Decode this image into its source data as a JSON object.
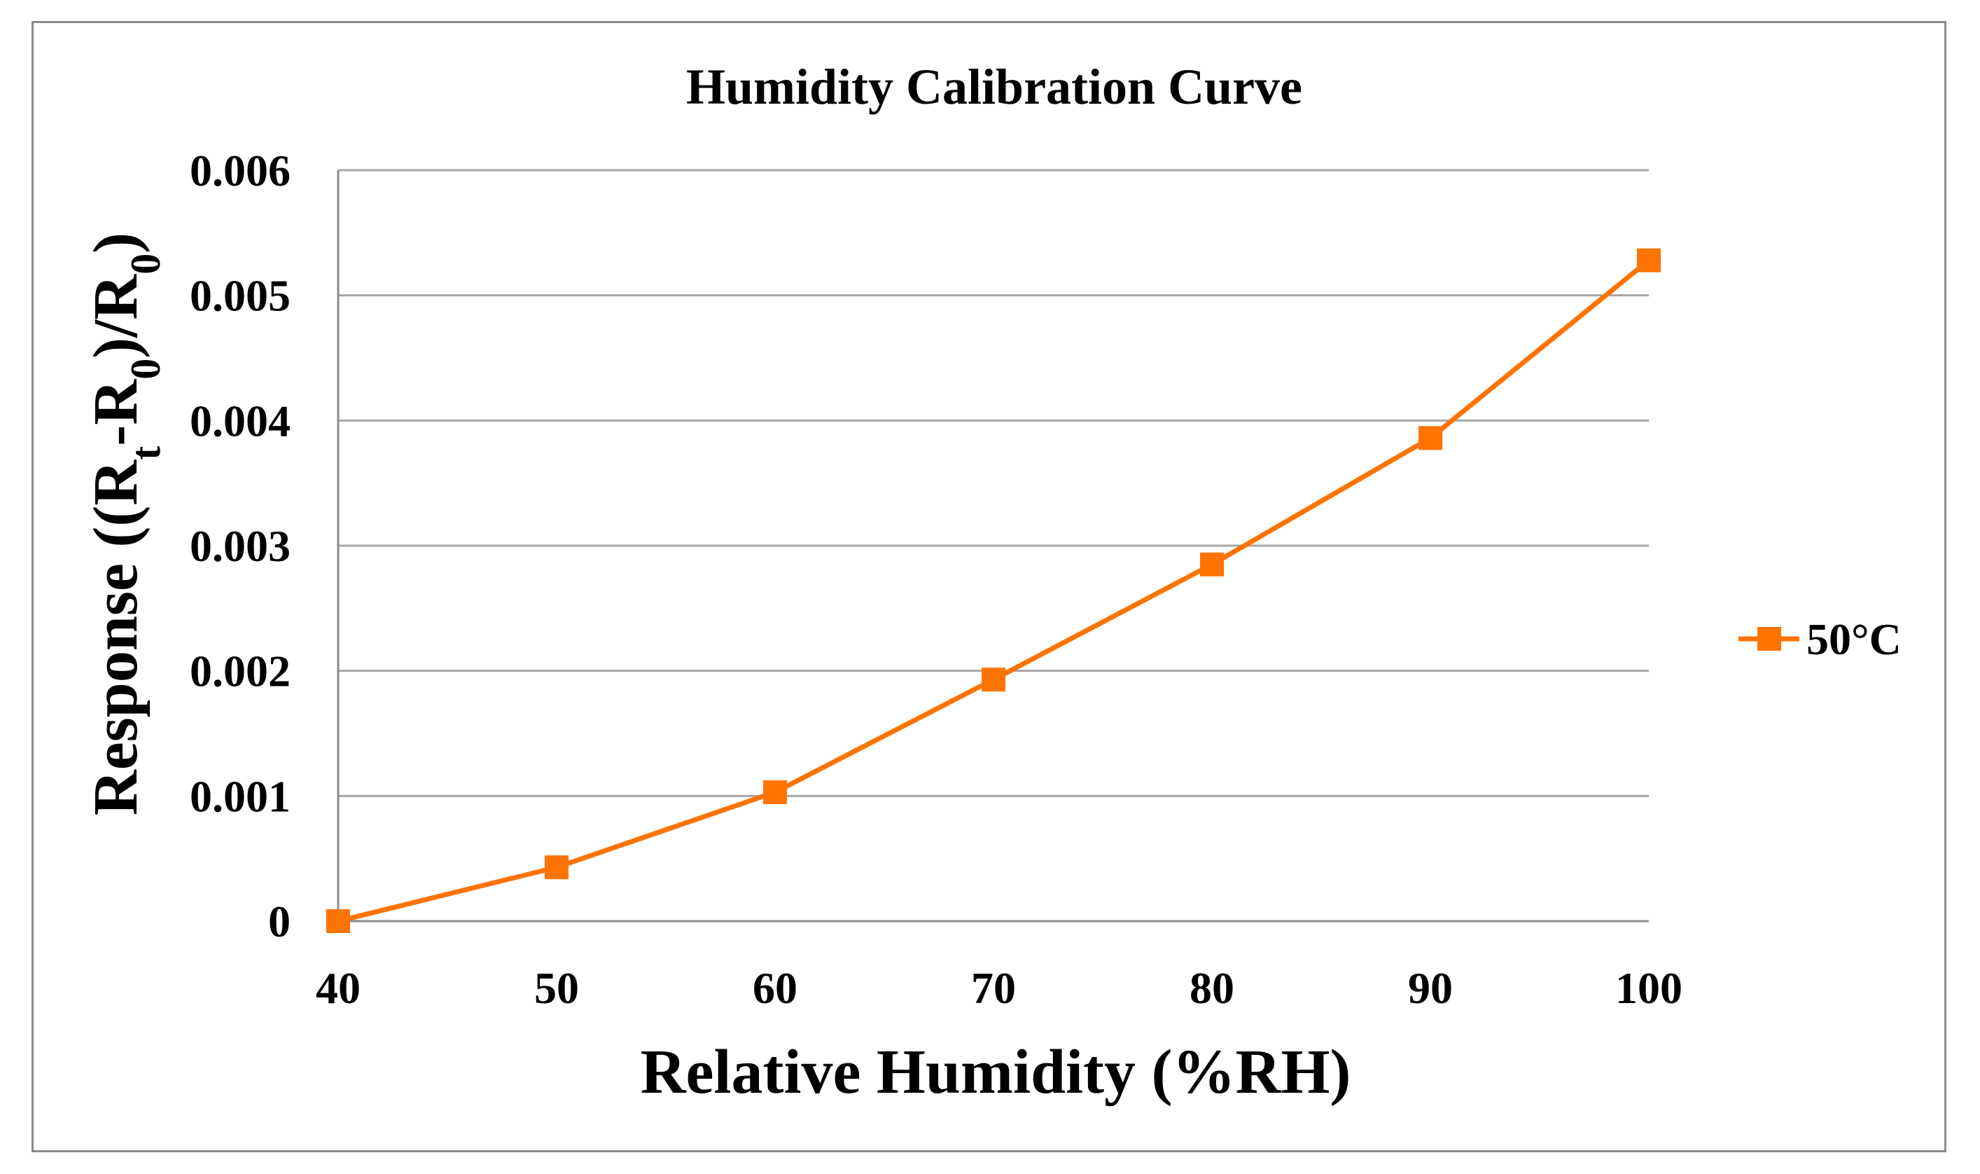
{
  "colors": {
    "series": "#ff7300",
    "grid": "#a6a6a6",
    "axis": "#8a8a8a",
    "text": "#000000"
  },
  "chart_data": {
    "type": "line",
    "title": "Humidity Calibration Curve",
    "xlabel": "Relative Humidity (%RH)",
    "ylabel": "Response ((Rt-R0)/R0)",
    "ylabel_parts": [
      "Response ((R",
      "t",
      "-R",
      "0",
      ")/R",
      "0",
      ")"
    ],
    "xlim": [
      40,
      100
    ],
    "ylim": [
      0,
      0.006
    ],
    "xticks": [
      40,
      50,
      60,
      70,
      80,
      90,
      100
    ],
    "xtick_labels": [
      "40",
      "50",
      "60",
      "70",
      "80",
      "90",
      "100"
    ],
    "yticks": [
      0,
      0.001,
      0.002,
      0.003,
      0.004,
      0.005,
      0.006
    ],
    "ytick_labels": [
      "0",
      "0.001",
      "0.002",
      "0.003",
      "0.004",
      "0.005",
      "0.006"
    ],
    "grid": true,
    "legend_position": "right",
    "marker": "square",
    "series": [
      {
        "name": "50°C",
        "x": [
          40,
          50,
          60,
          70,
          80,
          90,
          100
        ],
        "y": [
          0,
          0.00043,
          0.00103,
          0.00193,
          0.00285,
          0.00386,
          0.00528
        ]
      }
    ]
  }
}
